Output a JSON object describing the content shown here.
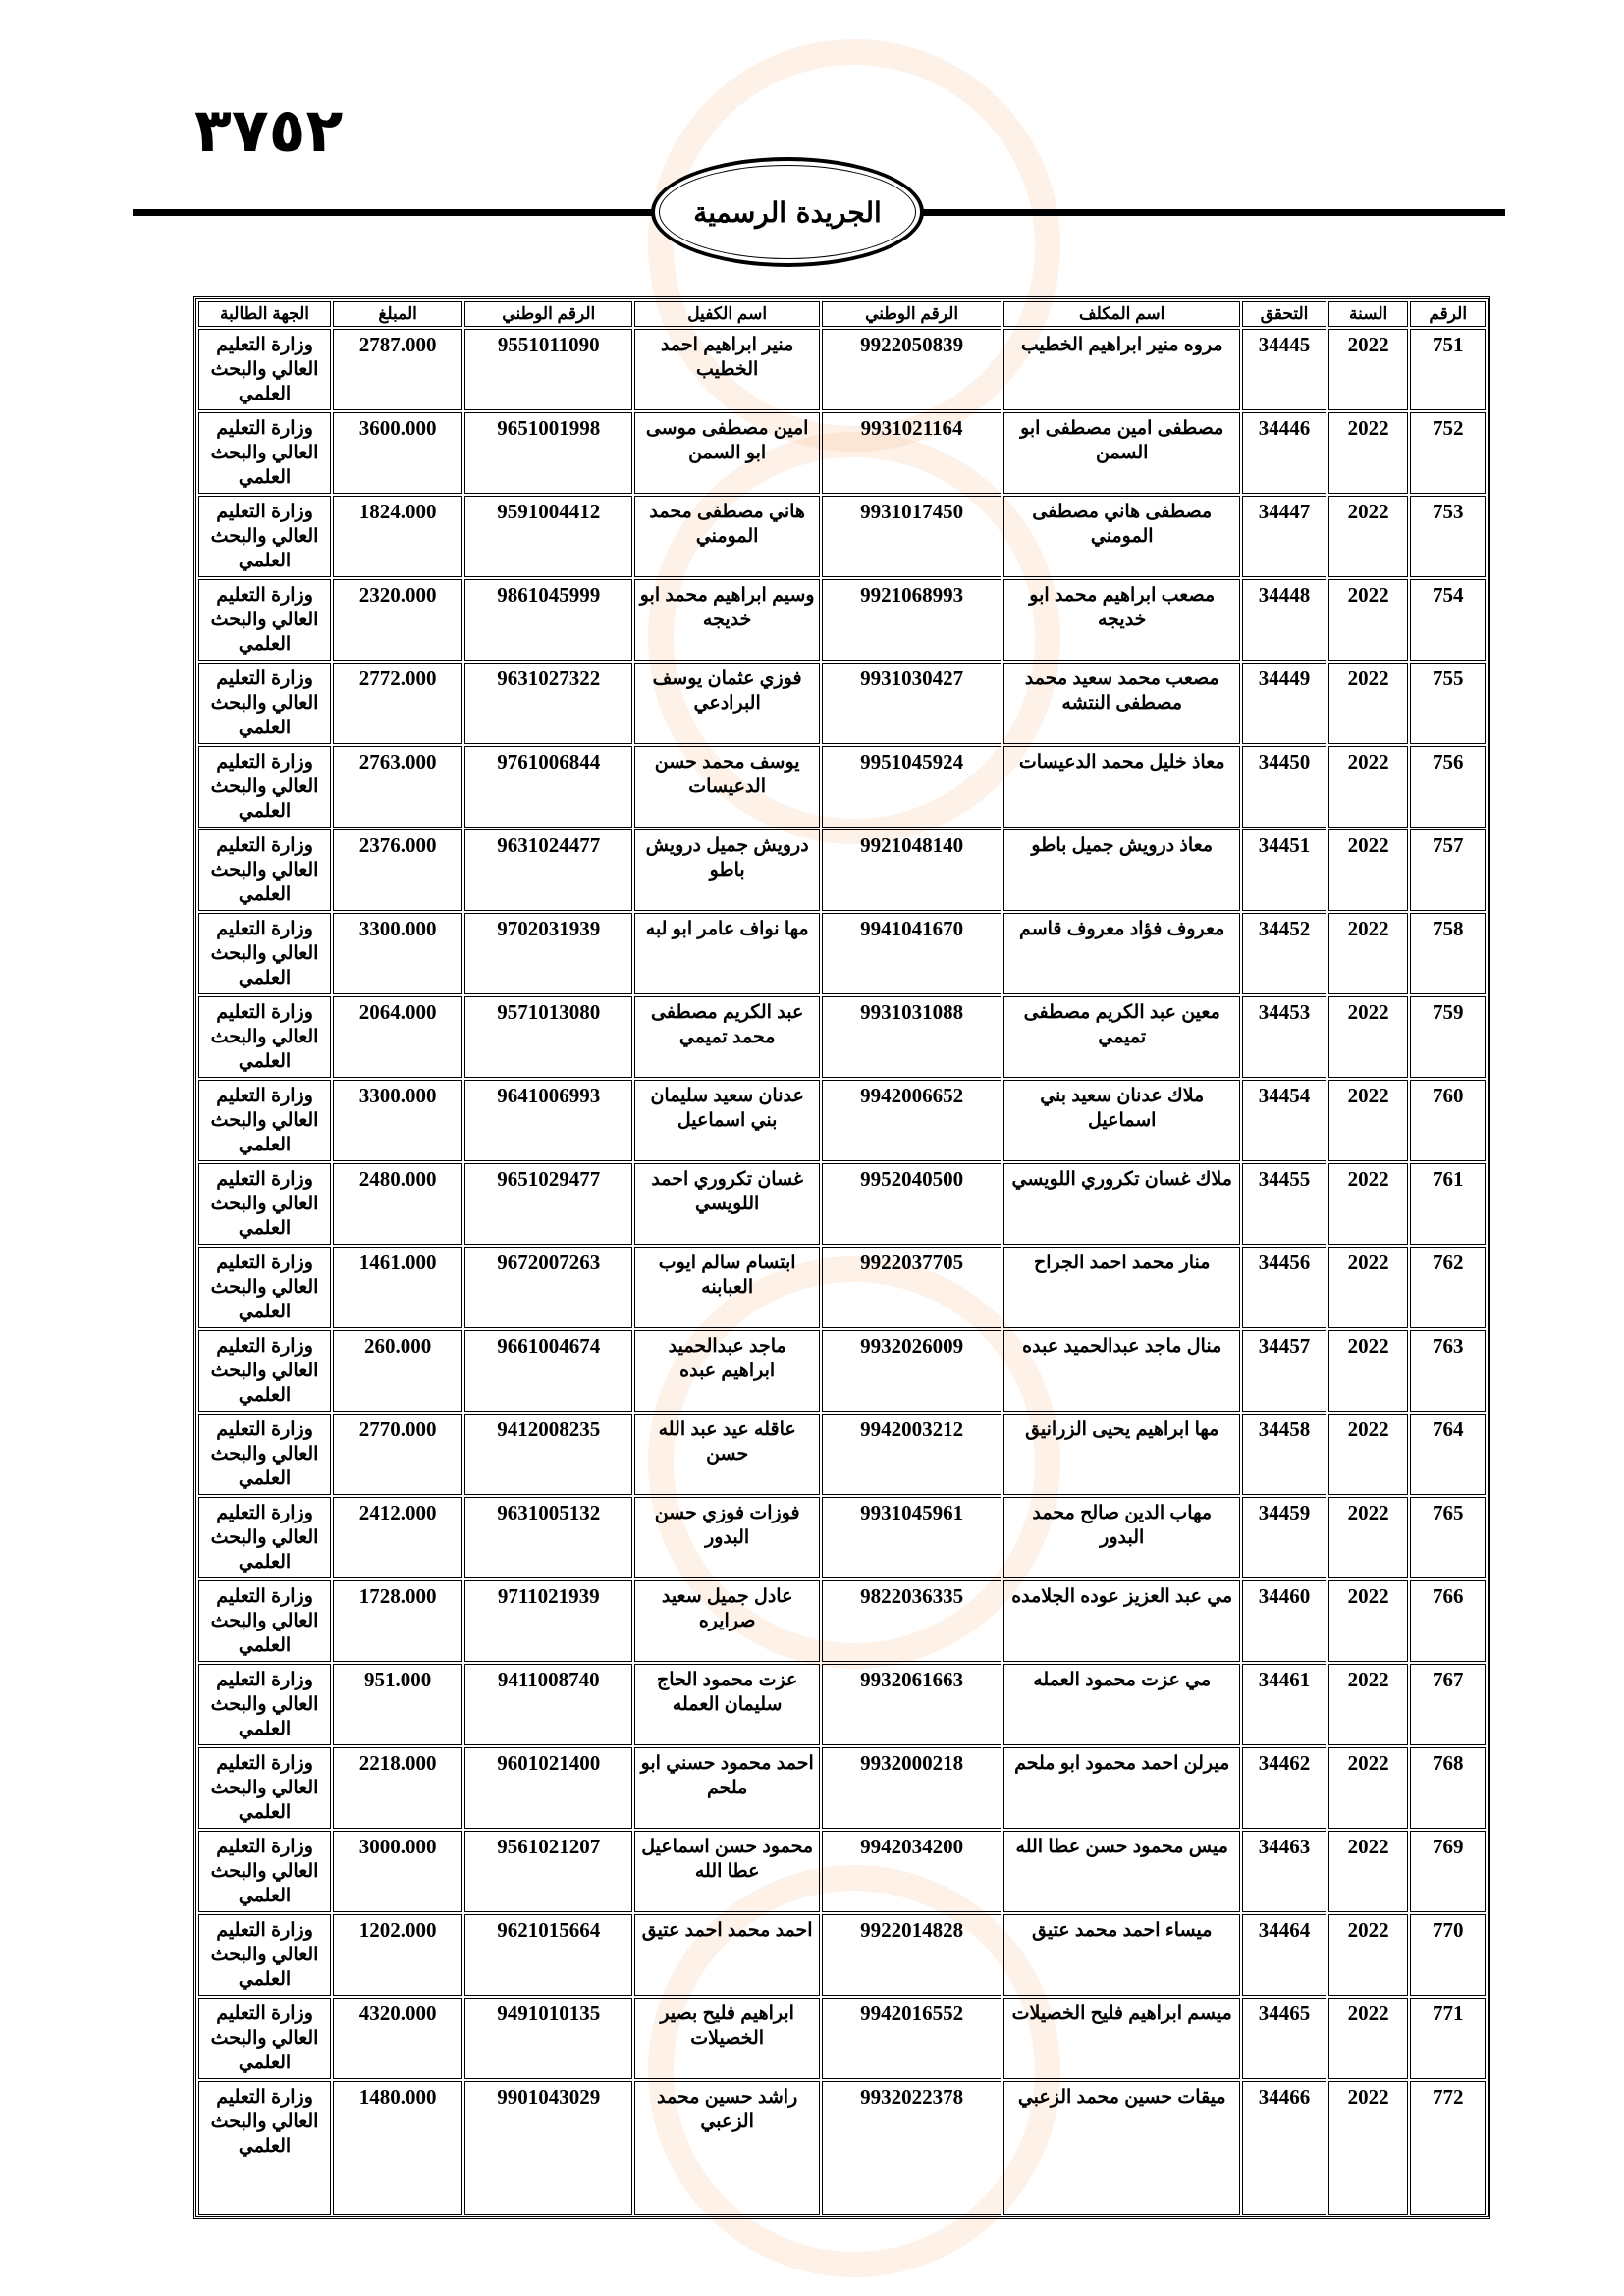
{
  "page_number": "٣٧٥٢",
  "publication_title": "الجريدة الرسمية",
  "table": {
    "headers": [
      "الرقم",
      "السنة",
      "التحقق",
      "اسم المكلف",
      "الرقم الوطني",
      "اسم الكفيل",
      "الرقم الوطني",
      "المبلغ",
      "الجهة الطالبة"
    ],
    "rows": [
      [
        "751",
        "2022",
        "34445",
        "مروه منير ابراهيم الخطيب",
        "9922050839",
        "منير ابراهيم احمد الخطيب",
        "9551011090",
        "2787.000",
        "وزارة التعليم العالي والبحث العلمي"
      ],
      [
        "752",
        "2022",
        "34446",
        "مصطفى امين مصطفى ابو السمن",
        "9931021164",
        "امين مصطفى موسى ابو السمن",
        "9651001998",
        "3600.000",
        "وزارة التعليم العالي والبحث العلمي"
      ],
      [
        "753",
        "2022",
        "34447",
        "مصطفى هاني مصطفى المومني",
        "9931017450",
        "هاني مصطفى محمد المومني",
        "9591004412",
        "1824.000",
        "وزارة التعليم العالي والبحث العلمي"
      ],
      [
        "754",
        "2022",
        "34448",
        "مصعب ابراهيم محمد ابو خديجه",
        "9921068993",
        "وسيم ابراهيم محمد ابو خديجه",
        "9861045999",
        "2320.000",
        "وزارة التعليم العالي والبحث العلمي"
      ],
      [
        "755",
        "2022",
        "34449",
        "مصعب محمد سعيد محمد مصطفى النتشه",
        "9931030427",
        "فوزي عثمان يوسف البرادعي",
        "9631027322",
        "2772.000",
        "وزارة التعليم العالي والبحث العلمي"
      ],
      [
        "756",
        "2022",
        "34450",
        "معاذ خليل محمد الدعيسات",
        "9951045924",
        "يوسف محمد حسن الدعيسات",
        "9761006844",
        "2763.000",
        "وزارة التعليم العالي والبحث العلمي"
      ],
      [
        "757",
        "2022",
        "34451",
        "معاذ درويش جميل باطو",
        "9921048140",
        "درويش جميل درويش باطو",
        "9631024477",
        "2376.000",
        "وزارة التعليم العالي والبحث العلمي"
      ],
      [
        "758",
        "2022",
        "34452",
        "معروف فؤاد معروف قاسم",
        "9941041670",
        "مها نواف عامر ابو لبه",
        "9702031939",
        "3300.000",
        "وزارة التعليم العالي والبحث العلمي"
      ],
      [
        "759",
        "2022",
        "34453",
        "معين عبد الكريم مصطفى تميمي",
        "9931031088",
        "عبد الكريم مصطفى محمد تميمي",
        "9571013080",
        "2064.000",
        "وزارة التعليم العالي والبحث العلمي"
      ],
      [
        "760",
        "2022",
        "34454",
        "ملاك عدنان سعيد بني اسماعيل",
        "9942006652",
        "عدنان سعيد سليمان بني اسماعيل",
        "9641006993",
        "3300.000",
        "وزارة التعليم العالي والبحث العلمي"
      ],
      [
        "761",
        "2022",
        "34455",
        "ملاك غسان تكروري اللويسي",
        "9952040500",
        "غسان تكروري احمد اللويسي",
        "9651029477",
        "2480.000",
        "وزارة التعليم العالي والبحث العلمي"
      ],
      [
        "762",
        "2022",
        "34456",
        "منار محمد احمد الجراح",
        "9922037705",
        "ابتسام سالم ايوب العبابنه",
        "9672007263",
        "1461.000",
        "وزارة التعليم العالي والبحث العلمي"
      ],
      [
        "763",
        "2022",
        "34457",
        "منال ماجد عبدالحميد عبده",
        "9932026009",
        "ماجد عبدالحميد ابراهيم عبده",
        "9661004674",
        "260.000",
        "وزارة التعليم العالي والبحث العلمي"
      ],
      [
        "764",
        "2022",
        "34458",
        "مها ابراهيم يحيى الزرانيق",
        "9942003212",
        "عاقله عيد عبد الله حسن",
        "9412008235",
        "2770.000",
        "وزارة التعليم العالي والبحث العلمي"
      ],
      [
        "765",
        "2022",
        "34459",
        "مهاب الدين صالح محمد البدور",
        "9931045961",
        "فوزات فوزي حسن البدور",
        "9631005132",
        "2412.000",
        "وزارة التعليم العالي والبحث العلمي"
      ],
      [
        "766",
        "2022",
        "34460",
        "مي عبد العزيز عوده الجلامده",
        "9822036335",
        "عادل جميل سعيد صرايره",
        "9711021939",
        "1728.000",
        "وزارة التعليم العالي والبحث العلمي"
      ],
      [
        "767",
        "2022",
        "34461",
        "مي عزت محمود العمله",
        "9932061663",
        "عزت محمود الحاج سليمان العمله",
        "9411008740",
        "951.000",
        "وزارة التعليم العالي والبحث العلمي"
      ],
      [
        "768",
        "2022",
        "34462",
        "ميرلن احمد محمود ابو ملحم",
        "9932000218",
        "احمد محمود حسني ابو ملحم",
        "9601021400",
        "2218.000",
        "وزارة التعليم العالي والبحث العلمي"
      ],
      [
        "769",
        "2022",
        "34463",
        "ميس محمود حسن عطا الله",
        "9942034200",
        "محمود حسن اسماعيل عطا الله",
        "9561021207",
        "3000.000",
        "وزارة التعليم العالي والبحث العلمي"
      ],
      [
        "770",
        "2022",
        "34464",
        "ميساء احمد محمد عتيق",
        "9922014828",
        "احمد محمد احمد عتيق",
        "9621015664",
        "1202.000",
        "وزارة التعليم العالي والبحث العلمي"
      ],
      [
        "771",
        "2022",
        "34465",
        "ميسم ابراهيم فليح الخصيلات",
        "9942016552",
        "ابراهيم فليح بصير الخصيلات",
        "9491010135",
        "4320.000",
        "وزارة التعليم العالي والبحث العلمي"
      ],
      [
        "772",
        "2022",
        "34466",
        "ميقات حسين محمد الزعبي",
        "9932022378",
        "راشد حسين محمد الزعبي",
        "9901043029",
        "1480.000",
        "وزارة التعليم العالي والبحث العلمي"
      ]
    ]
  }
}
